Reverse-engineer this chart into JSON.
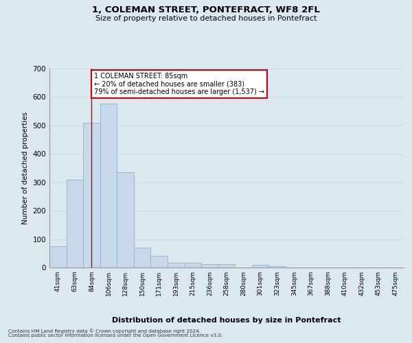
{
  "title": "1, COLEMAN STREET, PONTEFRACT, WF8 2FL",
  "subtitle": "Size of property relative to detached houses in Pontefract",
  "xlabel": "Distribution of detached houses by size in Pontefract",
  "ylabel": "Number of detached properties",
  "bar_labels": [
    "41sqm",
    "63sqm",
    "84sqm",
    "106sqm",
    "128sqm",
    "150sqm",
    "171sqm",
    "193sqm",
    "215sqm",
    "236sqm",
    "258sqm",
    "280sqm",
    "301sqm",
    "323sqm",
    "345sqm",
    "367sqm",
    "388sqm",
    "410sqm",
    "432sqm",
    "453sqm",
    "475sqm"
  ],
  "bar_values": [
    75,
    310,
    510,
    578,
    335,
    70,
    40,
    18,
    18,
    12,
    12,
    0,
    10,
    5,
    0,
    0,
    0,
    0,
    0,
    0,
    0
  ],
  "bar_color": "#c8d8eb",
  "bar_edge_color": "#8ab4d4",
  "ylim": [
    0,
    700
  ],
  "yticks": [
    0,
    100,
    200,
    300,
    400,
    500,
    600,
    700
  ],
  "property_bar_index": 2,
  "property_line_label": "1 COLEMAN STREET: 85sqm",
  "annotation_line1": "← 20% of detached houses are smaller (383)",
  "annotation_line2": "79% of semi-detached houses are larger (1,537) →",
  "annotation_box_color": "#ffffff",
  "annotation_box_edge_color": "#cc0000",
  "grid_color": "#d0d8e0",
  "bg_color": "#dce8f0",
  "footer_line1": "Contains HM Land Registry data © Crown copyright and database right 2024.",
  "footer_line2": "Contains public sector information licensed under the Open Government Licence v3.0."
}
